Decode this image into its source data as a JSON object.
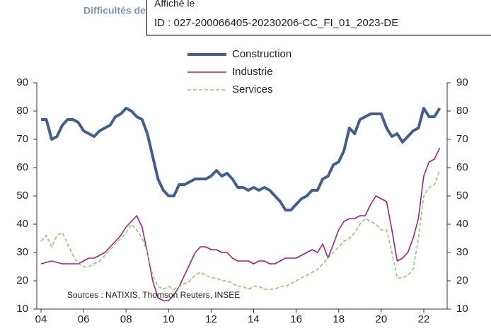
{
  "chart_data": {
    "type": "line",
    "title": "Difficultés de recrutement (% d'entreprises)",
    "source": "Sources : NATIXIS, Thomson Reuters, INSEE",
    "x": [
      2004,
      2004.25,
      2004.5,
      2004.75,
      2005,
      2005.25,
      2005.5,
      2005.75,
      2006,
      2006.25,
      2006.5,
      2006.75,
      2007,
      2007.25,
      2007.5,
      2007.75,
      2008,
      2008.25,
      2008.5,
      2008.75,
      2009,
      2009.25,
      2009.5,
      2009.75,
      2010,
      2010.25,
      2010.5,
      2010.75,
      2011,
      2011.25,
      2011.5,
      2011.75,
      2012,
      2012.25,
      2012.5,
      2012.75,
      2013,
      2013.25,
      2013.5,
      2013.75,
      2014,
      2014.25,
      2014.5,
      2014.75,
      2015,
      2015.25,
      2015.5,
      2015.75,
      2016,
      2016.25,
      2016.5,
      2016.75,
      2017,
      2017.25,
      2017.5,
      2017.75,
      2018,
      2018.25,
      2018.5,
      2018.75,
      2019,
      2019.25,
      2019.5,
      2019.75,
      2020,
      2020.25,
      2020.5,
      2020.75,
      2021,
      2021.25,
      2021.5,
      2021.75,
      2022,
      2022.25,
      2022.5,
      2022.75
    ],
    "series": [
      {
        "name": "Construction",
        "color": "#41608f",
        "width": 4,
        "dashed": false,
        "values": [
          77,
          77,
          70,
          71,
          75,
          77,
          77,
          76,
          73,
          72,
          71,
          73,
          74,
          75,
          78,
          79,
          81,
          80,
          78,
          77,
          72,
          64,
          56,
          52,
          50,
          50,
          54,
          54,
          55,
          56,
          56,
          56,
          57,
          59,
          57,
          58,
          56,
          53,
          53,
          52,
          53,
          52,
          53,
          52,
          50,
          48,
          45,
          45,
          47,
          49,
          50,
          52,
          52,
          56,
          57,
          61,
          62,
          66,
          74,
          72,
          77,
          78,
          79,
          79,
          79,
          74,
          71,
          72,
          69,
          71,
          73,
          74,
          81,
          78,
          78,
          81
        ]
      },
      {
        "name": "Industrie",
        "color": "#a3207b",
        "width": 1.6,
        "dashed": false,
        "values": [
          26,
          26.5,
          27,
          26.5,
          26,
          26,
          26,
          26,
          27,
          28,
          28,
          29,
          30,
          32,
          34,
          36,
          39,
          41,
          43,
          39,
          30,
          20,
          14,
          13,
          13,
          15,
          18,
          22,
          26,
          30,
          32,
          32,
          31,
          31,
          30,
          30,
          28,
          27,
          27,
          27,
          26,
          27,
          27,
          26,
          26,
          27,
          28,
          28,
          28,
          29,
          30,
          31,
          30,
          33,
          28,
          33,
          38,
          41,
          42,
          42,
          43,
          43,
          47,
          50,
          49,
          48,
          38,
          27,
          28,
          30,
          35,
          42,
          57,
          62,
          63,
          67
        ]
      },
      {
        "name": "Services",
        "color": "#86d064",
        "width": 1.6,
        "dashed": true,
        "values": [
          34,
          36,
          32,
          36,
          37,
          33,
          29,
          26,
          25,
          25,
          26,
          27,
          29,
          31,
          33,
          35,
          37,
          40,
          38,
          35,
          30,
          22,
          18,
          17,
          18,
          17,
          18,
          19,
          20,
          22,
          23,
          22,
          21,
          21,
          20,
          20,
          19,
          18,
          18,
          17,
          18,
          18,
          17,
          17,
          17,
          18,
          18,
          19,
          20,
          21,
          22,
          23,
          24,
          26,
          28,
          30,
          32,
          34,
          35,
          37,
          40,
          42,
          41,
          40,
          38,
          38,
          30,
          21,
          21,
          22,
          24,
          35,
          50,
          53,
          54,
          59
        ]
      }
    ],
    "xlim": [
      2003.8,
      2023.1
    ],
    "xticks": [
      {
        "value": 2004,
        "label": "04"
      },
      {
        "value": 2006,
        "label": "06"
      },
      {
        "value": 2008,
        "label": "08"
      },
      {
        "value": 2010,
        "label": "10"
      },
      {
        "value": 2012,
        "label": "12"
      },
      {
        "value": 2014,
        "label": "14"
      },
      {
        "value": 2016,
        "label": "16"
      },
      {
        "value": 2018,
        "label": "18"
      },
      {
        "value": 2020,
        "label": "20"
      },
      {
        "value": 2022,
        "label": "22"
      }
    ],
    "ylim": [
      10,
      90
    ],
    "yticks": [
      10,
      20,
      30,
      40,
      50,
      60,
      70,
      80,
      90
    ],
    "y2lim": [
      10,
      90
    ],
    "y2ticks": [
      10,
      20,
      30,
      40,
      50,
      60,
      70,
      80,
      90
    ],
    "grid": false
  },
  "stamp": {
    "line1": "Affiché le",
    "line2": "ID : 027-200066405-20230206-CC_FI_01_2023-DE"
  }
}
